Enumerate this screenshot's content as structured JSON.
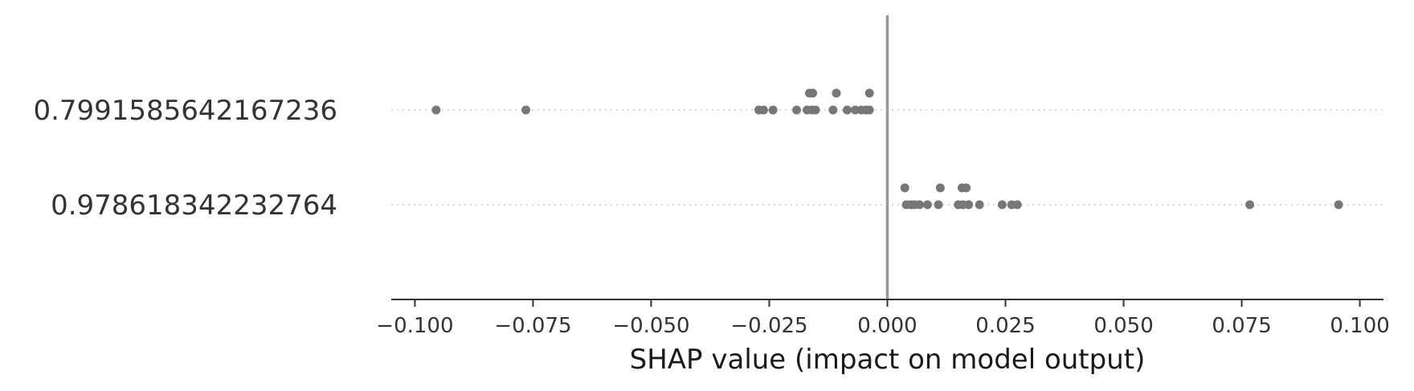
{
  "chart_data": {
    "type": "scatter",
    "title": "",
    "xlabel": "SHAP value (impact on model output)",
    "ylabel": "",
    "xlim": [
      -0.105,
      0.105
    ],
    "xticks": [
      -0.1,
      -0.075,
      -0.05,
      -0.025,
      0.0,
      0.025,
      0.05,
      0.075,
      0.1
    ],
    "xtick_labels": [
      "−0.100",
      "−0.075",
      "−0.050",
      "−0.025",
      "0.000",
      "0.025",
      "0.050",
      "0.075",
      "0.100"
    ],
    "zero_line": true,
    "point_color": "#777777",
    "series": [
      {
        "feature": "0.7991585642167236",
        "points": [
          {
            "x": -0.0955,
            "lane": 0
          },
          {
            "x": -0.0765,
            "lane": 0
          },
          {
            "x": -0.0272,
            "lane": 0
          },
          {
            "x": -0.0262,
            "lane": 0
          },
          {
            "x": -0.0242,
            "lane": 0
          },
          {
            "x": -0.0192,
            "lane": 0
          },
          {
            "x": -0.017,
            "lane": 0
          },
          {
            "x": -0.016,
            "lane": 0
          },
          {
            "x": -0.0152,
            "lane": 0
          },
          {
            "x": -0.0115,
            "lane": 0
          },
          {
            "x": -0.0085,
            "lane": 0
          },
          {
            "x": -0.0068,
            "lane": 0
          },
          {
            "x": -0.0055,
            "lane": 0
          },
          {
            "x": -0.0045,
            "lane": 0
          },
          {
            "x": -0.0038,
            "lane": 0
          },
          {
            "x": -0.0165,
            "lane": 1
          },
          {
            "x": -0.0158,
            "lane": 1
          },
          {
            "x": -0.0108,
            "lane": 1
          },
          {
            "x": -0.0038,
            "lane": 1
          }
        ]
      },
      {
        "feature": "0.978618342232764",
        "points": [
          {
            "x": 0.004,
            "lane": 0
          },
          {
            "x": 0.005,
            "lane": 0
          },
          {
            "x": 0.0058,
            "lane": 0
          },
          {
            "x": 0.0068,
            "lane": 0
          },
          {
            "x": 0.0085,
            "lane": 0
          },
          {
            "x": 0.0108,
            "lane": 0
          },
          {
            "x": 0.015,
            "lane": 0
          },
          {
            "x": 0.016,
            "lane": 0
          },
          {
            "x": 0.0172,
            "lane": 0
          },
          {
            "x": 0.0195,
            "lane": 0
          },
          {
            "x": 0.0243,
            "lane": 0
          },
          {
            "x": 0.0263,
            "lane": 0
          },
          {
            "x": 0.0275,
            "lane": 0
          },
          {
            "x": 0.0767,
            "lane": 0
          },
          {
            "x": 0.0955,
            "lane": 0
          },
          {
            "x": 0.0037,
            "lane": 1
          },
          {
            "x": 0.0112,
            "lane": 1
          },
          {
            "x": 0.0158,
            "lane": 1
          },
          {
            "x": 0.0167,
            "lane": 1
          }
        ]
      }
    ]
  }
}
